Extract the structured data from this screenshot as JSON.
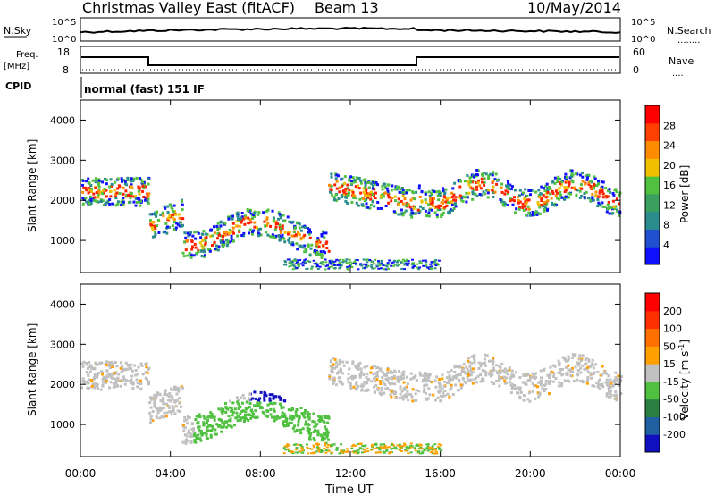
{
  "header": {
    "title": "Christmas Valley East (fitACF)",
    "beam": "Beam 13",
    "date": "10/May/2014"
  },
  "strip": {
    "nsky_label": "N.Sky",
    "nsearch_label": "N.Search",
    "nsearch_dots": "........",
    "freq_label_1": "Freq.",
    "freq_label_2": "[MHz]",
    "nave_label": "Nave",
    "nave_dots": "....",
    "cpid_label": "CPID",
    "cpid_text": "normal (fast) 151 IF",
    "left_ticks_top": [
      "10^5",
      "10^0"
    ],
    "right_ticks_top": [
      "10^5",
      "10^0"
    ],
    "left_ticks_freq": [
      "18",
      "8"
    ],
    "right_ticks_freq": [
      "60",
      "0"
    ]
  },
  "chart_data": [
    {
      "type": "heatmap",
      "name": "power",
      "ylabel": "Slant Range [km]",
      "xlabel": "",
      "x_tick_labels": [
        "00:00",
        "04:00",
        "08:00",
        "12:00",
        "16:00",
        "20:00",
        "00:00"
      ],
      "y_tick_labels": [
        "1000",
        "2000",
        "3000",
        "4000"
      ],
      "ylim": [
        200,
        4500
      ],
      "xlim_hours": [
        0,
        24
      ],
      "colorbar": {
        "label": "Power [dB]",
        "ticks": [
          "4",
          "8",
          "12",
          "16",
          "20",
          "24",
          "28"
        ],
        "range": [
          0,
          32
        ],
        "colors": [
          "#1010ff",
          "#2050d0",
          "#2a8c8c",
          "#3aa060",
          "#50c040",
          "#f0c000",
          "#ff8c00",
          "#ff4000",
          "#ff0000"
        ]
      }
    },
    {
      "type": "heatmap",
      "name": "velocity",
      "ylabel": "Slant Range [km]",
      "xlabel": "Time UT",
      "x_tick_labels": [
        "00:00",
        "04:00",
        "08:00",
        "12:00",
        "16:00",
        "20:00",
        "00:00"
      ],
      "y_tick_labels": [
        "1000",
        "2000",
        "3000",
        "4000"
      ],
      "ylim": [
        200,
        4500
      ],
      "xlim_hours": [
        0,
        24
      ],
      "colorbar": {
        "label": "Velocity [m s",
        "label_sup": "-1",
        "label_end": "]",
        "ticks": [
          "200",
          "100",
          "50",
          "15",
          "-15",
          "-50",
          "-100",
          "-200"
        ],
        "colors": [
          "#1010c0",
          "#2060a0",
          "#2a8040",
          "#50c040",
          "#c0c0c0",
          "#ffa000",
          "#ff7000",
          "#ff3000",
          "#ff0000"
        ]
      }
    }
  ],
  "colors": {
    "power_bands": [
      "#1010ff",
      "#2a8c8c",
      "#50c040",
      "#f0c000",
      "#ff8c00",
      "#ff2000"
    ],
    "velocity_bands": [
      "#c0c0c0",
      "#50c040",
      "#1010c0",
      "#ffa000"
    ]
  }
}
